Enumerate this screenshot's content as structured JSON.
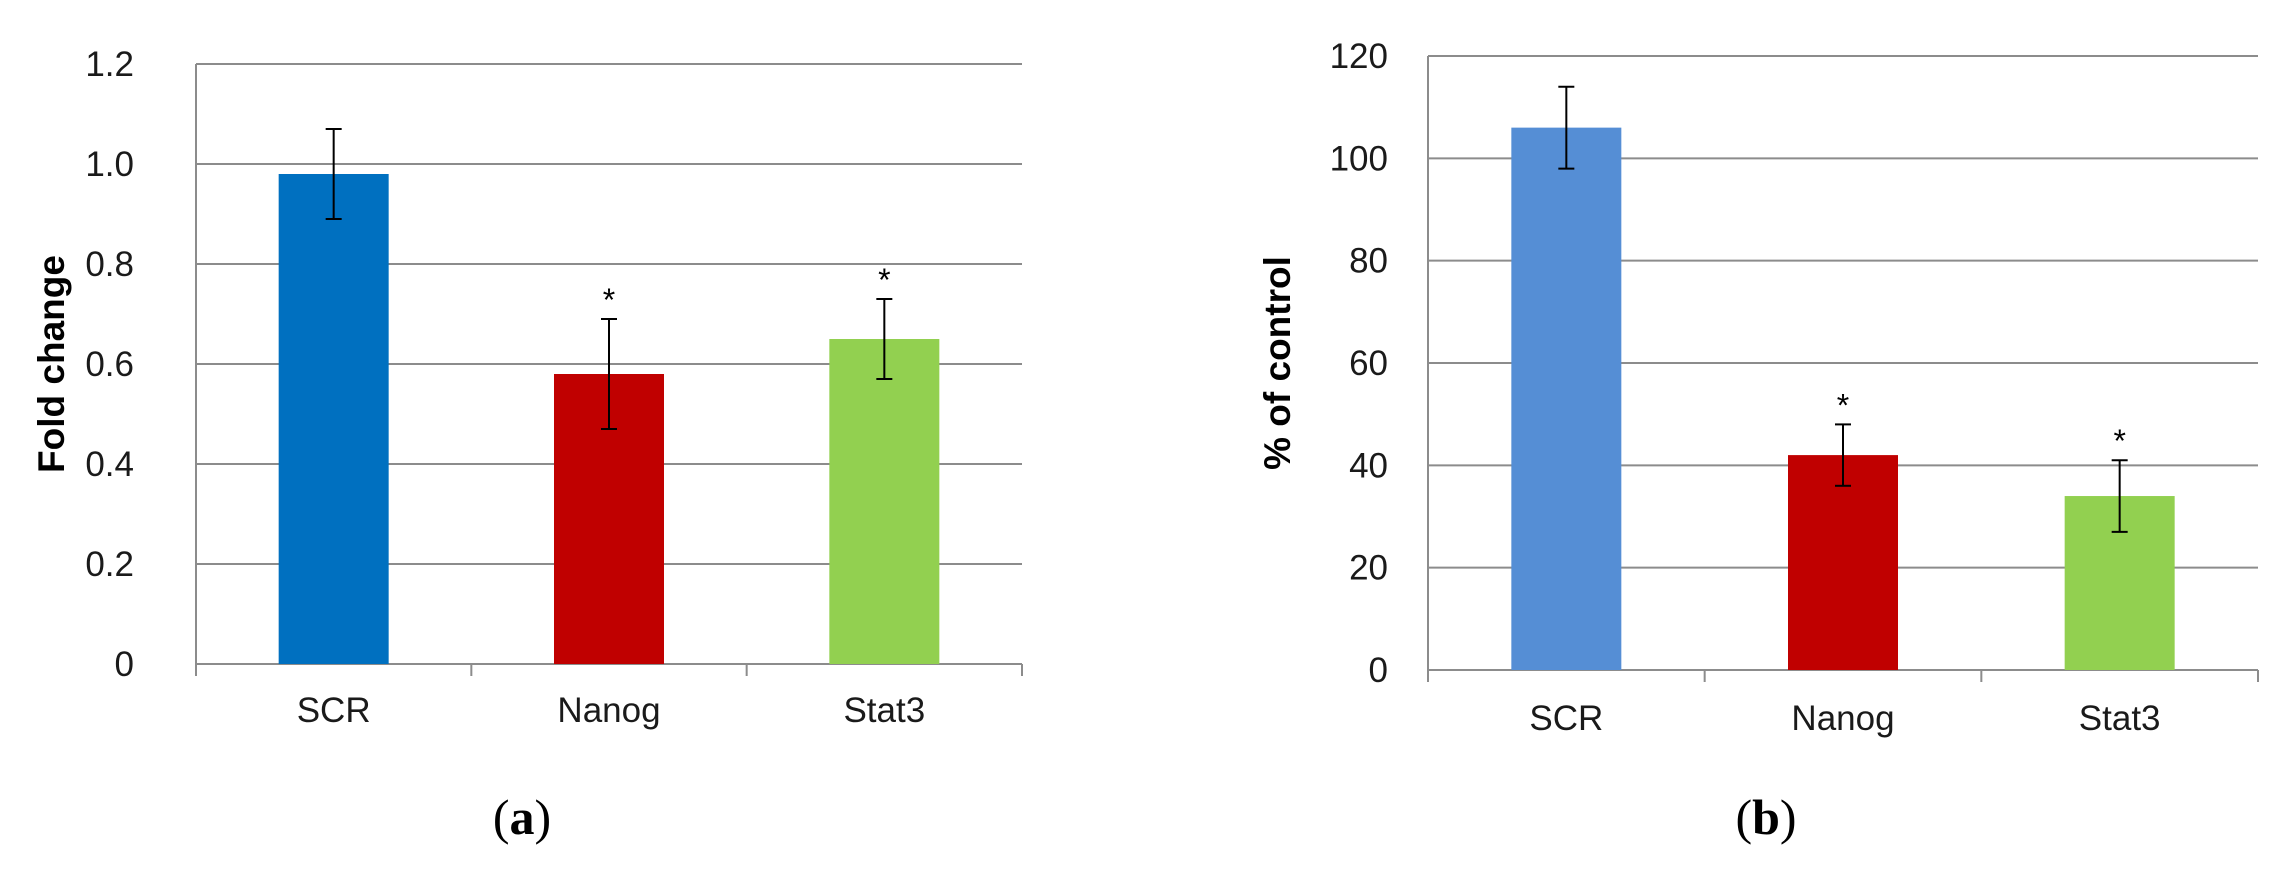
{
  "chart_data": [
    {
      "type": "bar",
      "panel_label": "a",
      "categories": [
        "SCR",
        "Nanog",
        "Stat3"
      ],
      "values": [
        0.98,
        0.58,
        0.65
      ],
      "errors": [
        0.09,
        0.11,
        0.08
      ],
      "significance": [
        "",
        "*",
        "*"
      ],
      "colors": [
        "#0070c0",
        "#c00000",
        "#92d050"
      ],
      "ylabel": "Fold change",
      "ylim": [
        0,
        1.2
      ],
      "yticks": [
        0,
        0.2,
        0.4,
        0.6,
        0.8,
        1.0,
        1.2
      ],
      "ytick_labels": [
        "0",
        "0.2",
        "0.4",
        "0.6",
        "0.8",
        "1.0",
        "1.2"
      ],
      "grid": true,
      "legend": "none"
    },
    {
      "type": "bar",
      "panel_label": "b",
      "categories": [
        "SCR",
        "Nanog",
        "Stat3"
      ],
      "values": [
        106,
        42,
        34
      ],
      "errors": [
        8,
        6,
        7
      ],
      "significance": [
        "",
        "*",
        "*"
      ],
      "colors": [
        "#558ed5",
        "#c00000",
        "#92d050"
      ],
      "ylabel": "% of  control",
      "ylim": [
        0,
        120
      ],
      "yticks": [
        0,
        20,
        40,
        60,
        80,
        100,
        120
      ],
      "ytick_labels": [
        "0",
        "20",
        "40",
        "60",
        "80",
        "100",
        "120"
      ],
      "grid": true,
      "legend": "none"
    }
  ]
}
